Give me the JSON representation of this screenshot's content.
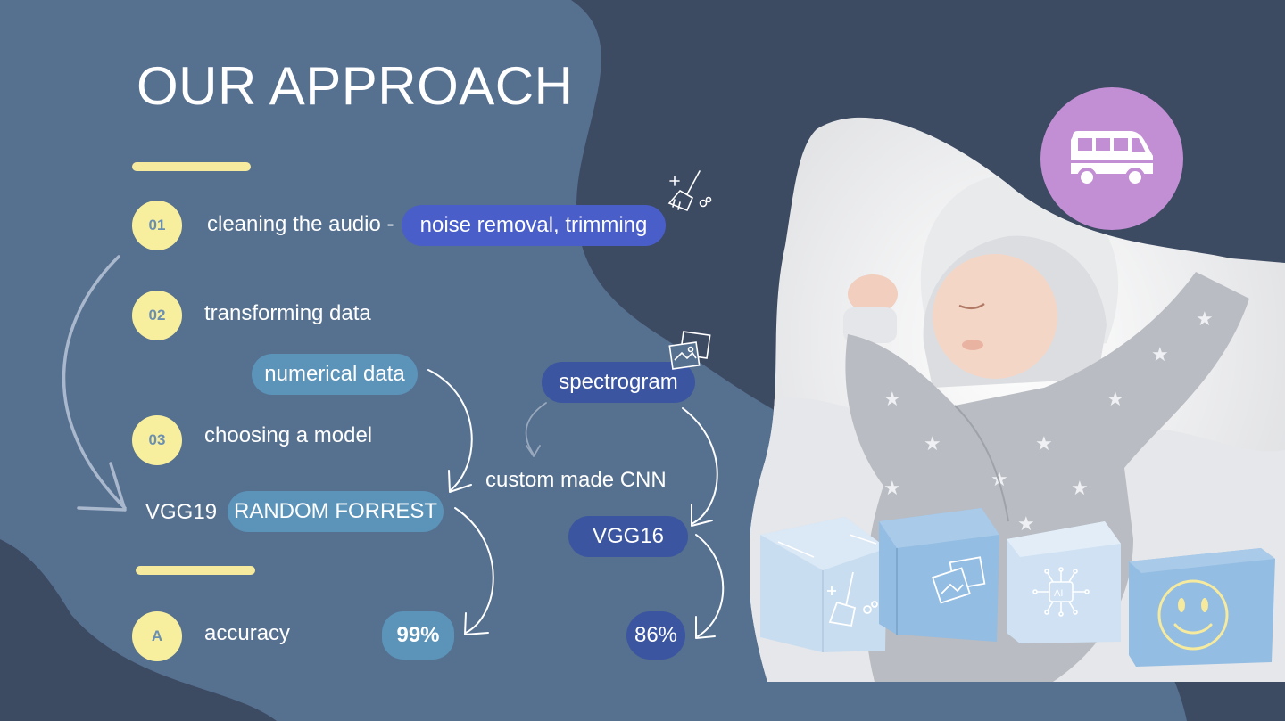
{
  "title": "OUR APPROACH",
  "steps": [
    {
      "badge": "01",
      "label": "cleaning the audio -",
      "highlight": "noise removal, trimming"
    },
    {
      "badge": "02",
      "label": "transforming data"
    },
    {
      "badge": "03",
      "label": "choosing a model"
    }
  ],
  "branches": {
    "numerical": "numerical data",
    "spectrogram": "spectrogram",
    "cnn": "custom made CNN",
    "vgg19": "VGG19",
    "random_forest": "RANDOM FORREST",
    "vgg16": "VGG16"
  },
  "result": {
    "badge": "A",
    "label": "accuracy",
    "left_value": "99%",
    "right_value": "86%"
  },
  "colors": {
    "background_dark": "#3c4a62",
    "background_blob": "#56708f",
    "accent_yellow": "#f8ef9e",
    "pill_light": "#5b93b9",
    "pill_dark": "#3b55a0",
    "bus_circle": "#c38fd4",
    "cube_light": "#c9ddf0",
    "cube_mid": "#93bde2"
  },
  "icons": [
    "broom-sparkle-icon",
    "photos-icon",
    "bus-icon",
    "broom-icon",
    "photos-icon",
    "ai-chip-icon",
    "smiley-icon"
  ],
  "image": {
    "subject": "sleeping baby photo"
  }
}
